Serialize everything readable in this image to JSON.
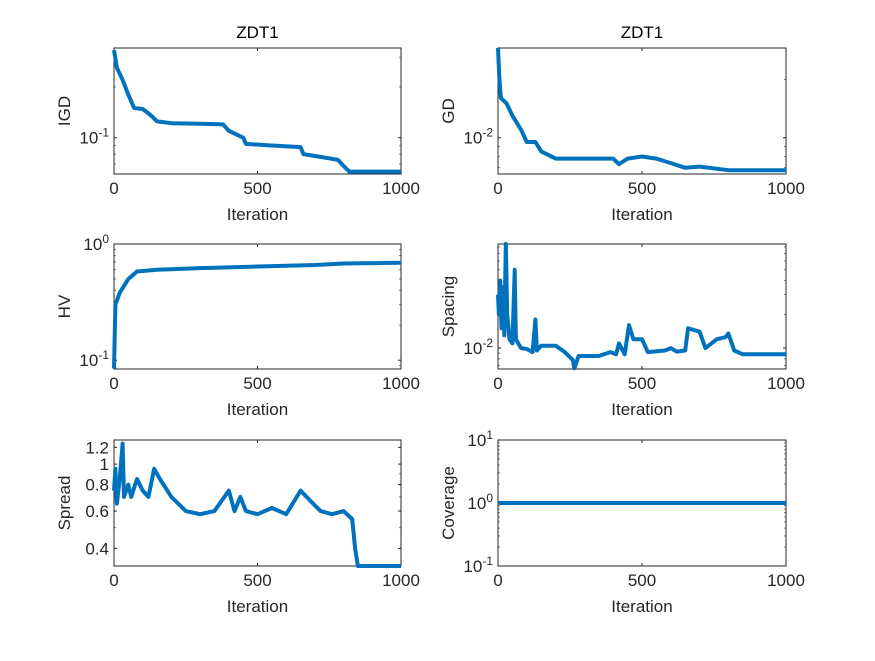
{
  "figure": {
    "line_color": "#0072BD",
    "axis_color": "#262626"
  },
  "chart_data": [
    {
      "id": "igd",
      "type": "line",
      "title": "ZDT1",
      "xlabel": "Iteration",
      "ylabel": "IGD",
      "yscale": "log",
      "xlim": [
        0,
        1000
      ],
      "ylim": [
        0.061,
        0.34
      ],
      "xticks": [
        {
          "value": 0,
          "label": "0"
        },
        {
          "value": 500,
          "label": "500"
        },
        {
          "value": 1000,
          "label": "1000"
        }
      ],
      "yticks": [
        {
          "value": 0.1,
          "base": "10",
          "exp": "-1"
        }
      ],
      "x": [
        0,
        10,
        30,
        50,
        70,
        100,
        130,
        150,
        200,
        300,
        380,
        400,
        450,
        460,
        550,
        650,
        660,
        700,
        780,
        800,
        820,
        1000
      ],
      "y": [
        0.33,
        0.26,
        0.22,
        0.18,
        0.15,
        0.148,
        0.135,
        0.125,
        0.122,
        0.121,
        0.12,
        0.11,
        0.1,
        0.092,
        0.09,
        0.088,
        0.08,
        0.078,
        0.074,
        0.068,
        0.063,
        0.063
      ]
    },
    {
      "id": "gd",
      "type": "line",
      "title": "ZDT1",
      "xlabel": "Iteration",
      "ylabel": "GD",
      "yscale": "log",
      "xlim": [
        0,
        1000
      ],
      "ylim": [
        0.0065,
        0.029
      ],
      "xticks": [
        {
          "value": 0,
          "label": "0"
        },
        {
          "value": 500,
          "label": "500"
        },
        {
          "value": 1000,
          "label": "1000"
        }
      ],
      "yticks": [
        {
          "value": 0.01,
          "base": "10",
          "exp": "-2"
        }
      ],
      "x": [
        0,
        5,
        10,
        30,
        50,
        80,
        100,
        130,
        150,
        200,
        400,
        420,
        450,
        500,
        550,
        600,
        650,
        700,
        800,
        1000
      ],
      "y": [
        0.029,
        0.02,
        0.016,
        0.015,
        0.013,
        0.011,
        0.0095,
        0.0095,
        0.0085,
        0.0078,
        0.0078,
        0.0073,
        0.0078,
        0.008,
        0.0078,
        0.0074,
        0.007,
        0.0071,
        0.0068,
        0.0068
      ]
    },
    {
      "id": "hv",
      "type": "line",
      "title": "",
      "xlabel": "Iteration",
      "ylabel": "HV",
      "yscale": "log",
      "xlim": [
        0,
        1000
      ],
      "ylim": [
        0.084,
        1
      ],
      "xticks": [
        {
          "value": 0,
          "label": "0"
        },
        {
          "value": 500,
          "label": "500"
        },
        {
          "value": 1000,
          "label": "1000"
        }
      ],
      "yticks": [
        {
          "value": 0.1,
          "base": "10",
          "exp": "-1"
        },
        {
          "value": 1,
          "base": "10",
          "exp": "0"
        }
      ],
      "x": [
        0,
        5,
        20,
        50,
        80,
        150,
        300,
        500,
        700,
        800,
        1000
      ],
      "y": [
        0.085,
        0.3,
        0.38,
        0.5,
        0.58,
        0.6,
        0.62,
        0.64,
        0.66,
        0.68,
        0.69
      ]
    },
    {
      "id": "spacing",
      "type": "line",
      "title": "",
      "xlabel": "Iteration",
      "ylabel": "Spacing",
      "yscale": "log",
      "xlim": [
        0,
        1000
      ],
      "ylim": [
        0.0065,
        0.085
      ],
      "xticks": [
        {
          "value": 0,
          "label": "0"
        },
        {
          "value": 500,
          "label": "500"
        },
        {
          "value": 1000,
          "label": "1000"
        }
      ],
      "yticks": [
        {
          "value": 0.01,
          "base": "10",
          "exp": "-2"
        }
      ],
      "x": [
        0,
        3,
        8,
        12,
        18,
        22,
        27,
        32,
        40,
        50,
        58,
        62,
        80,
        100,
        120,
        130,
        135,
        150,
        200,
        230,
        260,
        265,
        280,
        350,
        390,
        410,
        420,
        440,
        455,
        470,
        500,
        520,
        580,
        600,
        620,
        650,
        660,
        700,
        720,
        760,
        790,
        800,
        820,
        850,
        1000
      ],
      "y": [
        0.03,
        0.02,
        0.04,
        0.015,
        0.035,
        0.013,
        0.085,
        0.02,
        0.012,
        0.011,
        0.05,
        0.012,
        0.01,
        0.0098,
        0.0092,
        0.018,
        0.0095,
        0.0105,
        0.0105,
        0.0093,
        0.0078,
        0.0066,
        0.0085,
        0.0085,
        0.0092,
        0.0088,
        0.011,
        0.0088,
        0.016,
        0.012,
        0.012,
        0.0092,
        0.0095,
        0.01,
        0.0093,
        0.0095,
        0.015,
        0.014,
        0.01,
        0.012,
        0.0125,
        0.0135,
        0.0095,
        0.0088,
        0.0088
      ]
    },
    {
      "id": "spread",
      "type": "line",
      "title": "",
      "xlabel": "Iteration",
      "ylabel": "Spread",
      "yscale": "log",
      "xlim": [
        0,
        1000
      ],
      "ylim": [
        0.33,
        1.3
      ],
      "xticks": [
        {
          "value": 0,
          "label": "0"
        },
        {
          "value": 500,
          "label": "500"
        },
        {
          "value": 1000,
          "label": "1000"
        }
      ],
      "yticks": [
        {
          "value": 0.4,
          "base": "0.4",
          "exp": ""
        },
        {
          "value": 0.6,
          "base": "0.6",
          "exp": ""
        },
        {
          "value": 0.8,
          "base": "0.8",
          "exp": ""
        },
        {
          "value": 1,
          "base": "1",
          "exp": ""
        },
        {
          "value": 1.2,
          "base": "1.2",
          "exp": ""
        }
      ],
      "x": [
        0,
        5,
        10,
        20,
        30,
        35,
        50,
        60,
        80,
        100,
        120,
        140,
        160,
        200,
        250,
        300,
        350,
        400,
        420,
        440,
        460,
        500,
        550,
        600,
        650,
        680,
        720,
        760,
        800,
        830,
        840,
        850,
        1000
      ],
      "y": [
        0.75,
        0.95,
        0.65,
        0.85,
        1.25,
        0.7,
        0.8,
        0.7,
        0.85,
        0.75,
        0.7,
        0.95,
        0.85,
        0.7,
        0.6,
        0.58,
        0.6,
        0.75,
        0.6,
        0.7,
        0.6,
        0.58,
        0.62,
        0.58,
        0.75,
        0.68,
        0.6,
        0.58,
        0.6,
        0.55,
        0.4,
        0.33,
        0.33
      ]
    },
    {
      "id": "coverage",
      "type": "line",
      "title": "",
      "xlabel": "Iteration",
      "ylabel": "Coverage",
      "yscale": "log",
      "xlim": [
        0,
        1000
      ],
      "ylim": [
        0.1,
        10
      ],
      "xticks": [
        {
          "value": 0,
          "label": "0"
        },
        {
          "value": 500,
          "label": "500"
        },
        {
          "value": 1000,
          "label": "1000"
        }
      ],
      "yticks": [
        {
          "value": 0.1,
          "base": "10",
          "exp": "-1"
        },
        {
          "value": 1,
          "base": "10",
          "exp": "0"
        },
        {
          "value": 10,
          "base": "10",
          "exp": "1"
        }
      ],
      "x": [
        0,
        1000
      ],
      "y": [
        1,
        1
      ]
    }
  ]
}
